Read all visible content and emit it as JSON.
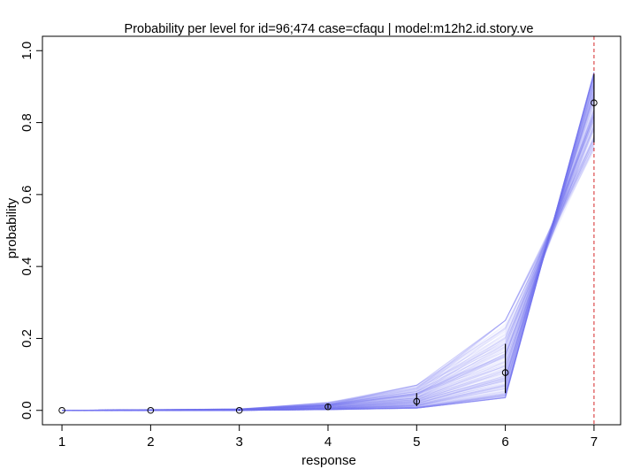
{
  "chart_data": {
    "type": "line",
    "title": "Probability per level for id=96;474 case=cfaqu | model:m12h2.id.story.ve",
    "xlabel": "response",
    "ylabel": "probability",
    "x": [
      1,
      2,
      3,
      4,
      5,
      6,
      7
    ],
    "x_tick_labels": [
      "1",
      "2",
      "3",
      "4",
      "5",
      "6",
      "7"
    ],
    "y_ticks": [
      0.0,
      0.2,
      0.4,
      0.6,
      0.8,
      1.0
    ],
    "y_tick_labels": [
      "0.0",
      "0.2",
      "0.4",
      "0.6",
      "0.8",
      "1.0"
    ],
    "xlim": [
      0.78,
      7.3
    ],
    "ylim": [
      -0.04,
      1.04
    ],
    "observed_response": 7,
    "points": [
      0.0,
      0.0,
      0.0,
      0.01,
      0.025,
      0.105,
      0.855
    ],
    "intervals": [
      [
        0.0,
        0.0
      ],
      [
        0.0,
        0.0
      ],
      [
        0.0,
        0.002
      ],
      [
        0.005,
        0.018
      ],
      [
        0.012,
        0.048
      ],
      [
        0.048,
        0.185
      ],
      [
        0.745,
        0.935
      ]
    ],
    "posterior_lines": {
      "count": 220,
      "upper": [
        0.0,
        0.002,
        0.004,
        0.022,
        0.07,
        0.25,
        0.94
      ],
      "lower": [
        0.0,
        0.0,
        0.0,
        0.002,
        0.006,
        0.035,
        0.72
      ]
    },
    "colors": {
      "posterior_line": "#7b7bf0",
      "point": "#000000",
      "reference_line": "#d62728"
    },
    "grid": false
  }
}
